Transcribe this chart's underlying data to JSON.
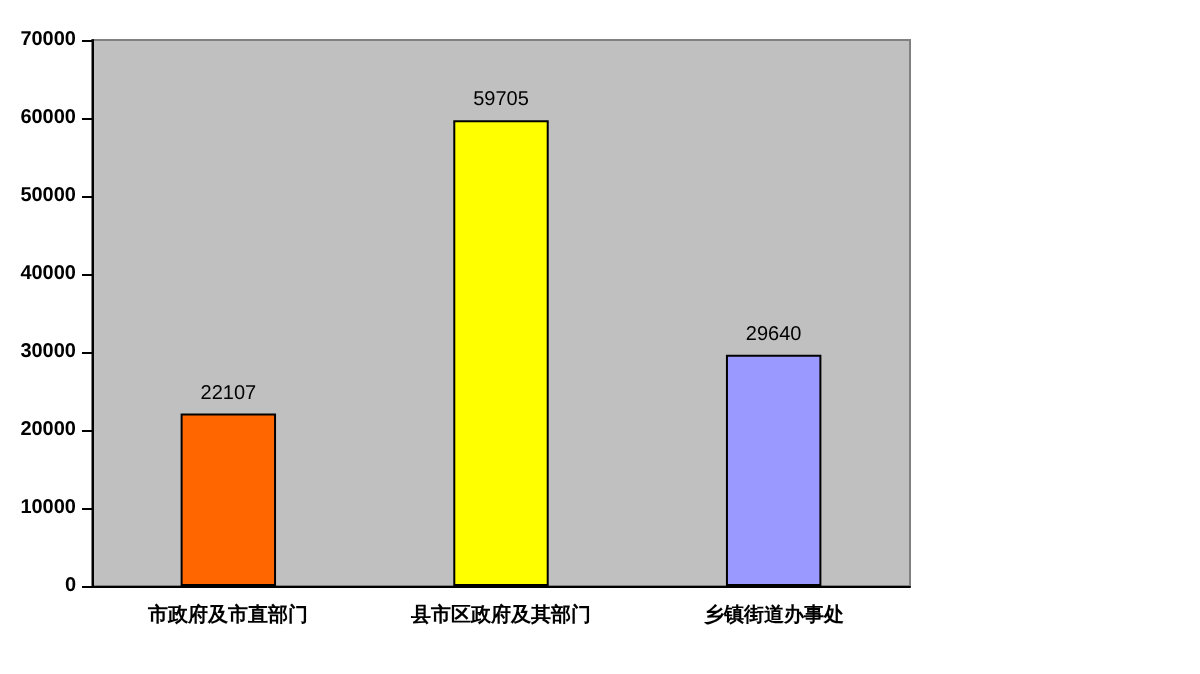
{
  "chart_data": {
    "type": "bar",
    "categories": [
      "市政府及市直部门",
      "县市区政府及其部门",
      "乡镇街道办事处"
    ],
    "values": [
      22107,
      59705,
      29640
    ],
    "colors": [
      "#ff6600",
      "#ffff00",
      "#9999ff"
    ],
    "ylim": [
      0,
      70000
    ],
    "yticks": [
      0,
      10000,
      20000,
      30000,
      40000,
      50000,
      60000,
      70000
    ],
    "data_labels": true,
    "grid": false
  }
}
